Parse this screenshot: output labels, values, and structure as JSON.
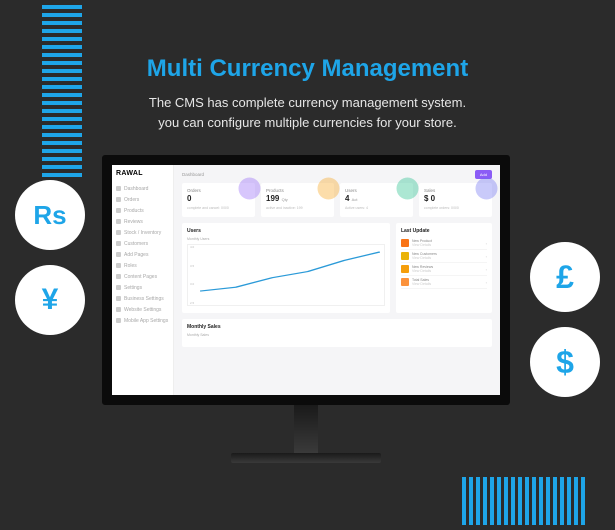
{
  "hero": {
    "title": "Multi Currency Management",
    "subtitle_l1": "The CMS has complete currency management system.",
    "subtitle_l2": "you can configure multiple currencies for your store."
  },
  "currencies": {
    "rs": "Rs",
    "yen": "¥",
    "pound": "£",
    "dollar": "$"
  },
  "colors": {
    "accent": "#1ea5e8",
    "bg": "#2b2b2b"
  },
  "dashboard": {
    "brand": "RAWAL",
    "breadcrumb": "Dashboard",
    "add_btn": "Add",
    "sidebar": [
      "Dashboard",
      "Orders",
      "Products",
      "Reviews",
      "Stock / Inventory",
      "Customers",
      "Add Pages",
      "Roles",
      "Content Pages",
      "Settings",
      "Business Settings",
      "Website Settings",
      "Mobile App Settings"
    ],
    "cards": [
      {
        "title": "Orders",
        "value": "0",
        "unit": "",
        "foot": "complete and cancel: 0/0/0",
        "blob": "#8b5cf6"
      },
      {
        "title": "Products",
        "value": "199",
        "unit": "Qty",
        "foot": "active and inactive: 199",
        "blob": "#f59e0b"
      },
      {
        "title": "Users",
        "value": "4",
        "unit": "Act",
        "foot": "Active users: 4",
        "blob": "#10b981"
      },
      {
        "title": "Sales",
        "value": "$ 0",
        "unit": "",
        "foot": "complete orders: 0/0/0",
        "blob": "#6366f1"
      }
    ],
    "users_panel": {
      "title": "Users",
      "subtitle": "Monthly Users",
      "y_ticks": [
        "4.0",
        "3.5",
        "3.0",
        "2.5"
      ],
      "line_color": "#2b9ad8",
      "points": [
        [
          0,
          55
        ],
        [
          20,
          50
        ],
        [
          40,
          38
        ],
        [
          60,
          30
        ],
        [
          80,
          16
        ],
        [
          100,
          5
        ]
      ]
    },
    "update_panel": {
      "title": "Last Update",
      "items": [
        {
          "label": "New Product",
          "sub": "View Details",
          "color": "#f97316"
        },
        {
          "label": "New Customers",
          "sub": "View Details",
          "color": "#eab308"
        },
        {
          "label": "New Reviews",
          "sub": "View Details",
          "color": "#f59e0b"
        },
        {
          "label": "Total Sales",
          "sub": "View Details",
          "color": "#fb923c"
        }
      ]
    },
    "monthly_panel": {
      "title": "Monthly Sales",
      "subtitle": "Monthly Sales"
    }
  }
}
